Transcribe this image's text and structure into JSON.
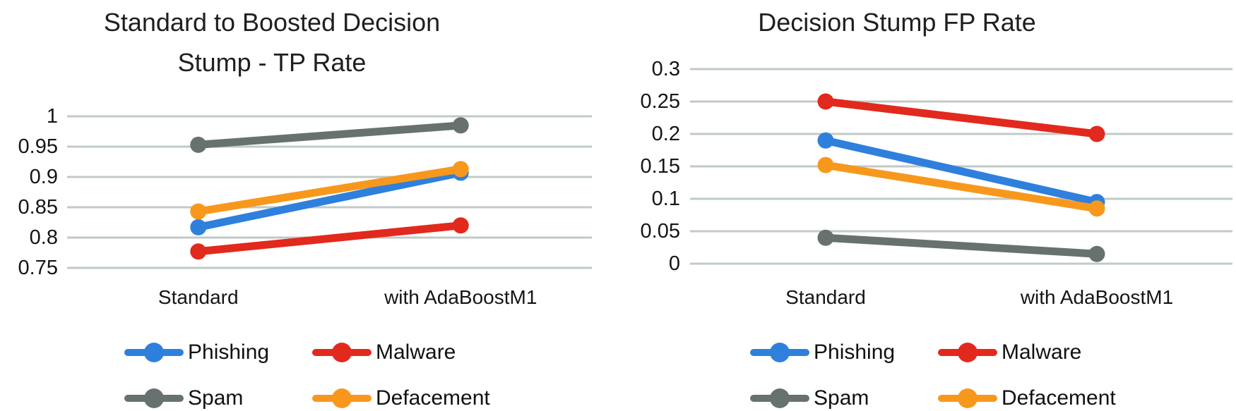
{
  "colors": {
    "phishing": "#2e80dc",
    "malware": "#e2291d",
    "spam": "#677170",
    "defacement": "#f7981d",
    "gridline": "#c0cac7",
    "text": "#1b1b1b"
  },
  "chart_data": [
    {
      "type": "line",
      "title": "Standard to Boosted Decision Stump - TP Rate",
      "title_lines": [
        "Standard to Boosted Decision",
        "Stump - TP Rate"
      ],
      "categories": [
        "Standard",
        "with AdaBoostM1"
      ],
      "y_tick_labels": [
        "1",
        "0.95",
        "0.9",
        "0.85",
        "0.8",
        "0.75"
      ],
      "ylim": [
        0.75,
        1.0
      ],
      "grid": true,
      "legend_position": "bottom",
      "xlabel": "",
      "ylabel": "",
      "series": [
        {
          "name": "Phishing",
          "color_key": "phishing",
          "values": [
            0.817,
            0.907
          ]
        },
        {
          "name": "Malware",
          "color_key": "malware",
          "values": [
            0.777,
            0.82
          ]
        },
        {
          "name": "Spam",
          "color_key": "spam",
          "values": [
            0.953,
            0.985
          ]
        },
        {
          "name": "Defacement",
          "color_key": "defacement",
          "values": [
            0.843,
            0.913
          ]
        }
      ],
      "legend_order": [
        "Phishing",
        "Malware",
        "Spam",
        "Defacement"
      ]
    },
    {
      "type": "line",
      "title": "Decision Stump FP Rate",
      "title_lines": [
        "Decision Stump FP Rate"
      ],
      "categories": [
        "Standard",
        "with AdaBoostM1"
      ],
      "y_tick_labels": [
        "0.3",
        "0.25",
        "0.2",
        "0.15",
        "0.1",
        "0.05",
        "0"
      ],
      "ylim": [
        0,
        0.3
      ],
      "grid": true,
      "legend_position": "bottom",
      "xlabel": "",
      "ylabel": "",
      "series": [
        {
          "name": "Phishing",
          "color_key": "phishing",
          "values": [
            0.19,
            0.095
          ]
        },
        {
          "name": "Malware",
          "color_key": "malware",
          "values": [
            0.25,
            0.2
          ]
        },
        {
          "name": "Spam",
          "color_key": "spam",
          "values": [
            0.04,
            0.015
          ]
        },
        {
          "name": "Defacement",
          "color_key": "defacement",
          "values": [
            0.152,
            0.085
          ]
        }
      ],
      "legend_order": [
        "Phishing",
        "Malware",
        "Spam",
        "Defacement"
      ]
    }
  ]
}
